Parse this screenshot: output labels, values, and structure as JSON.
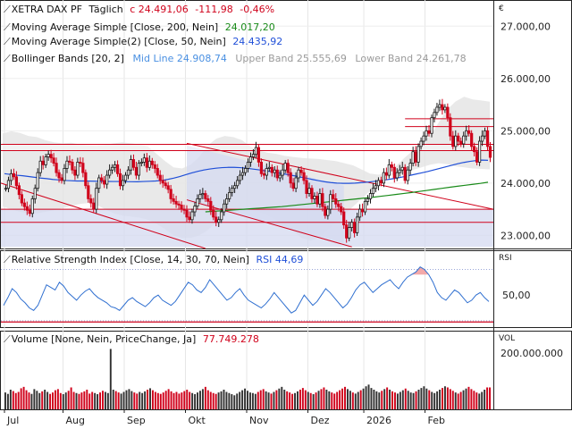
{
  "currency_symbol": "€",
  "price_panel": {
    "title": "XETRA DAX PF",
    "interval": "Täglich",
    "last": "c 24.491,06",
    "change": "-111,98",
    "change_pct": "-0,46%",
    "ma200_label": "Moving Average Simple [Close, 200, Nein]",
    "ma200_value": "24.017,20",
    "ma50_label": "Moving Average Simple(2) [Close, 50, Nein]",
    "ma50_value": "24.435,92",
    "bb_label": "Bollinger Bands [20, 2]",
    "bb_mid": "Mid Line 24.908,74",
    "bb_upper": "Upper Band 25.555,69",
    "bb_lower": "Lower Band 24.261,78"
  },
  "rsi_panel": {
    "tag": "RSI",
    "label": "Relative Strength Index [Close, 14, 30, 70, Nein]",
    "value": "RSI 44,69"
  },
  "volume_panel": {
    "tag": "VOL",
    "label": "Volume [None, Nein, PriceChange, Ja]",
    "value": "77.749.278"
  },
  "colors": {
    "up": "#1a1a1a",
    "down": "#d0021b",
    "ma50": "#1f4fd8",
    "ma200": "#188a18",
    "bb_fill": "#e3e3e3",
    "channel_fill": "#d4d9f0",
    "rsi": "#2f6fd0",
    "resistance": "#d0021b"
  },
  "chart_data": {
    "type": "candlestick",
    "x_tick_labels": [
      "Jul",
      "Aug",
      "Sep",
      "Okt",
      "Nov",
      "Dez",
      "2026",
      "Feb"
    ],
    "price_axis": {
      "ticks": [
        23000,
        24000,
        25000,
        26000,
        27000
      ],
      "tick_labels": [
        "23.000,00",
        "24.000,00",
        "25.000,00",
        "26.000,00",
        "27.000,00"
      ],
      "range": [
        22750,
        27500
      ]
    },
    "rsi_axis": {
      "ticks": [
        50
      ],
      "tick_labels": [
        "50,00"
      ],
      "range": [
        25,
        85
      ]
    },
    "volume_axis": {
      "ticks": [
        200000000
      ],
      "tick_labels": [
        "200.000.000"
      ],
      "range": [
        0,
        280000000
      ]
    },
    "close": [
      23900,
      24050,
      24180,
      24120,
      23950,
      23780,
      23620,
      23550,
      23480,
      23420,
      23700,
      23900,
      24200,
      24420,
      24350,
      24500,
      24550,
      24480,
      24380,
      24200,
      24100,
      24050,
      24280,
      24420,
      24400,
      24250,
      24150,
      24400,
      24380,
      24200,
      23950,
      23700,
      23620,
      23500,
      23900,
      24100,
      24050,
      23980,
      24150,
      24250,
      24300,
      24350,
      24180,
      23950,
      24050,
      24150,
      24250,
      24450,
      24300,
      24150,
      24380,
      24400,
      24480,
      24300,
      24420,
      24350,
      24280,
      24150,
      24050,
      24000,
      23950,
      23880,
      23700,
      23650,
      23600,
      23580,
      23500,
      23480,
      23350,
      23300,
      23450,
      23560,
      23700,
      23780,
      23800,
      23700,
      23650,
      23480,
      23350,
      23250,
      23300,
      23450,
      23600,
      23700,
      23820,
      23900,
      23950,
      24050,
      24150,
      24200,
      24280,
      24400,
      24500,
      24550,
      24680,
      24400,
      24180,
      24150,
      24280,
      24300,
      24200,
      24250,
      24100,
      24150,
      24250,
      24380,
      24200,
      24000,
      23900,
      24100,
      24250,
      24200,
      24050,
      23800,
      23900,
      23700,
      23750,
      23600,
      23800,
      23550,
      23380,
      23500,
      23780,
      23700,
      23600,
      23550,
      23450,
      23200,
      22950,
      23150,
      23250,
      23050,
      23350,
      23500,
      23450,
      23650,
      23700,
      23800,
      23900,
      23950,
      24050,
      24000,
      24200,
      24150,
      24350,
      24300,
      24100,
      24200,
      24250,
      24300,
      24050,
      24250,
      24380,
      24600,
      24400,
      24700,
      24800,
      24900,
      25000,
      24950,
      25250,
      25350,
      25450,
      25500,
      25400,
      25450,
      25250,
      24900,
      24700,
      24900,
      24800,
      24750,
      24900,
      25000,
      24950,
      24700,
      24600,
      24400,
      24800,
      24900,
      25000,
      24700,
      24491
    ],
    "ma50": [
      24180,
      24165,
      24150,
      24140,
      24125,
      24110,
      24095,
      24085,
      24070,
      24060,
      24050,
      24045,
      24040,
      24040,
      24038,
      24036,
      24034,
      24032,
      24030,
      24030,
      24028,
      24026,
      24025,
      24030,
      24035,
      24040,
      24050,
      24070,
      24095,
      24125,
      24160,
      24195,
      24225,
      24250,
      24270,
      24285,
      24295,
      24300,
      24300,
      24295,
      24285,
      24270,
      24255,
      24238,
      24220,
      24200,
      24180,
      24160,
      24138,
      24115,
      24092,
      24068,
      24045,
      24025,
      24010,
      24000,
      23995,
      23995,
      24000,
      24008,
      24018,
      24030,
      24045,
      24060,
      24078,
      24098,
      24120,
      24145,
      24170,
      24195,
      24220,
      24250,
      24280,
      24310,
      24340,
      24370,
      24395,
      24415,
      24430,
      24440,
      24435
    ],
    "ma200": [
      23450,
      23460,
      23470,
      23480,
      23490,
      23500,
      23510,
      23520,
      23530,
      23540,
      23550,
      23565,
      23580,
      23595,
      23610,
      23625,
      23640,
      23655,
      23670,
      23685,
      23700,
      23715,
      23730,
      23748,
      23766,
      23784,
      23802,
      23820,
      23840,
      23860,
      23880,
      23900,
      23920,
      23940,
      23958,
      23976,
      23994,
      24017
    ],
    "bb_upper": [
      24950,
      24990,
      24960,
      24900,
      24880,
      24820,
      24780,
      24760,
      24770,
      24740,
      24720,
      24710,
      24730,
      24760,
      24780,
      24760,
      24740,
      24700,
      24560,
      24420,
      24300,
      24280,
      24350,
      24500,
      24720,
      24850,
      24900,
      24880,
      24820,
      24700,
      24620,
      24580,
      24560,
      24520,
      24500,
      24480,
      24470,
      24460,
      24440,
      24420,
      24380,
      24340,
      24260,
      24180,
      24160,
      24200,
      24320,
      24480,
      24620,
      24780,
      24900,
      25150,
      25400,
      25560,
      25650,
      25600,
      25580,
      25556
    ],
    "bb_lower": [
      23550,
      23500,
      23450,
      23420,
      23420,
      23450,
      23480,
      23520,
      23560,
      23600,
      23620,
      23580,
      23500,
      23420,
      23380,
      23360,
      23340,
      23300,
      23220,
      23120,
      23000,
      22950,
      22950,
      23000,
      23100,
      23250,
      23400,
      23480,
      23520,
      23500,
      23450,
      23380,
      23300,
      23200,
      23080,
      22950,
      22900,
      22950,
      23100,
      23250,
      23400,
      23550,
      23700,
      23850,
      24000,
      24100,
      24180,
      24200,
      24250,
      24300,
      24350,
      24380,
      24360,
      24320,
      24300,
      24280,
      24270,
      24262
    ],
    "rsi": [
      42,
      48,
      55,
      52,
      47,
      44,
      40,
      38,
      42,
      50,
      58,
      56,
      54,
      60,
      57,
      52,
      49,
      46,
      50,
      53,
      55,
      51,
      48,
      46,
      44,
      41,
      40,
      38,
      42,
      46,
      48,
      45,
      43,
      41,
      44,
      48,
      50,
      46,
      44,
      42,
      45,
      50,
      55,
      60,
      58,
      54,
      52,
      56,
      62,
      58,
      54,
      50,
      46,
      48,
      52,
      55,
      50,
      46,
      44,
      42,
      40,
      43,
      47,
      52,
      48,
      44,
      40,
      36,
      38,
      44,
      50,
      46,
      42,
      45,
      50,
      55,
      52,
      48,
      44,
      40,
      43,
      48,
      54,
      58,
      60,
      56,
      52,
      55,
      58,
      60,
      62,
      58,
      55,
      60,
      64,
      66,
      68,
      72,
      70,
      66,
      60,
      52,
      48,
      46,
      50,
      54,
      52,
      48,
      44,
      46,
      50,
      52,
      48,
      45
    ],
    "volume_millions": [
      60,
      55,
      70,
      65,
      58,
      62,
      75,
      80,
      68,
      60,
      55,
      72,
      66,
      58,
      64,
      70,
      62,
      55,
      60,
      68,
      72,
      58,
      54,
      60,
      66,
      78,
      62,
      58,
      55,
      60,
      64,
      70,
      56,
      62,
      58,
      54,
      60,
      66,
      62,
      58,
      215,
      70,
      65,
      60,
      56,
      62,
      68,
      72,
      65,
      60,
      56,
      62,
      58,
      64,
      70,
      75,
      68,
      62,
      58,
      55,
      60,
      66,
      72,
      64,
      58,
      62,
      56,
      60,
      65,
      70,
      62,
      58,
      54,
      60,
      66,
      72,
      80,
      68,
      62,
      58,
      55,
      60,
      64,
      70,
      62,
      58,
      54,
      50,
      56,
      62,
      68,
      74,
      66,
      60,
      58,
      55,
      62,
      68,
      72,
      64,
      60,
      56,
      62,
      68,
      74,
      80,
      70,
      64,
      60,
      55,
      58,
      64,
      70,
      76,
      68,
      62,
      58,
      54,
      60,
      66,
      72,
      78,
      70,
      64,
      60,
      56,
      62,
      68,
      74,
      80,
      72,
      66,
      60,
      56,
      62,
      68,
      74,
      82,
      88,
      76,
      70,
      64,
      60,
      66,
      72,
      78,
      70,
      64,
      60,
      56,
      62,
      68,
      74,
      66,
      60,
      58,
      64,
      70,
      76,
      82,
      74,
      68,
      62,
      58,
      64,
      70,
      76,
      82,
      78,
      72,
      66,
      60,
      56,
      62,
      68,
      74,
      80,
      72,
      66,
      60,
      56,
      62,
      70,
      78,
      78
    ]
  }
}
